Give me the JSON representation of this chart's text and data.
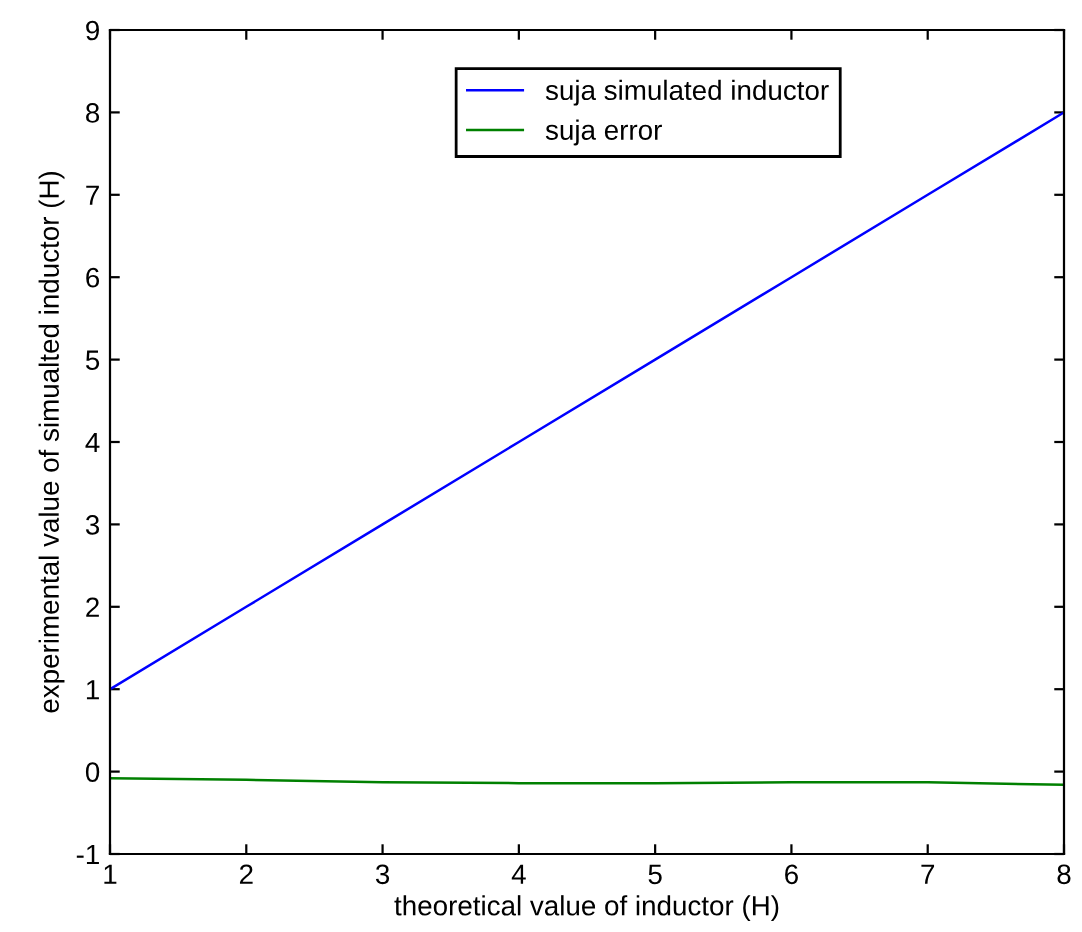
{
  "chart_data": {
    "type": "line",
    "xlabel": "theoretical value of inductor (H)",
    "ylabel": "experimental value of simualted inductor (H)",
    "x": [
      1,
      2,
      3,
      4,
      5,
      6,
      7,
      8
    ],
    "series": [
      {
        "name": "suja simulated inductor",
        "color": "#0000ff",
        "values": [
          1,
          2,
          3,
          4,
          5,
          6,
          7,
          8
        ]
      },
      {
        "name": "suja error",
        "color": "#008000",
        "values": [
          -0.08,
          -0.1,
          -0.13,
          -0.14,
          -0.14,
          -0.13,
          -0.13,
          -0.16
        ]
      }
    ],
    "xlim": [
      1,
      8
    ],
    "ylim": [
      -1,
      9
    ],
    "xticks": [
      1,
      2,
      3,
      4,
      5,
      6,
      7,
      8
    ],
    "yticks": [
      -1,
      0,
      1,
      2,
      3,
      4,
      5,
      6,
      7,
      8,
      9
    ],
    "legend": "top right",
    "grid": false
  }
}
